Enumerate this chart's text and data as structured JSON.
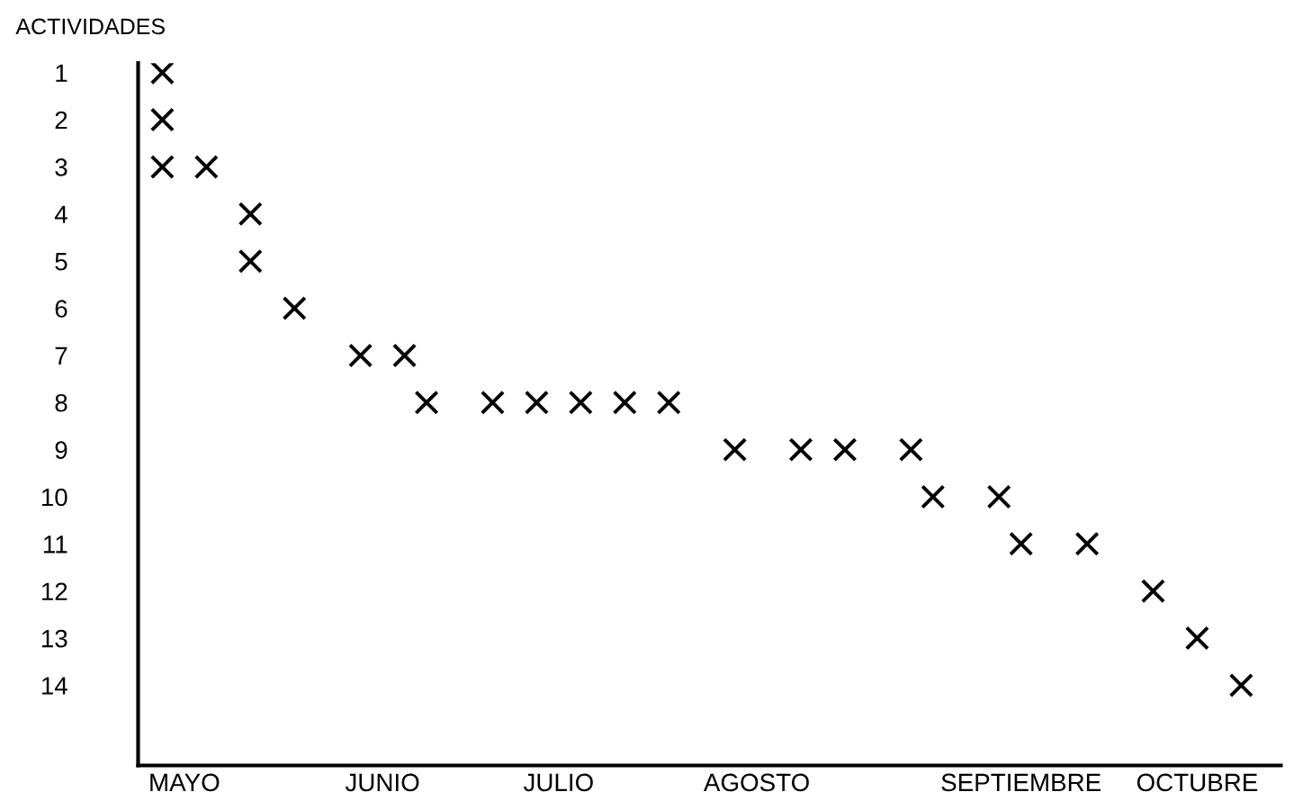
{
  "chart_data": {
    "type": "scatter",
    "ylabel": "ACTIVIDADES",
    "categories": [
      null,
      "MAYO",
      null,
      null,
      null,
      null,
      null,
      null,
      null,
      null,
      "JUNIO",
      null,
      null,
      null,
      null,
      null,
      null,
      null,
      "JULIO",
      null,
      null,
      null,
      null,
      null,
      null,
      null,
      null,
      "AGOSTO",
      null,
      null,
      null,
      null,
      null,
      null,
      null,
      null,
      null,
      null,
      null,
      "SEPTIEMBRE",
      null,
      null,
      null,
      null,
      null,
      null,
      null,
      "OCTUBRE",
      null,
      null,
      null
    ],
    "series": [
      {
        "color": "#000000",
        "values": [
          1,
          null,
          null,
          null,
          null,
          null,
          null,
          null,
          null,
          null,
          null,
          null,
          null,
          null,
          null,
          null,
          null,
          null,
          null,
          null,
          null,
          null,
          null,
          null,
          null,
          null,
          null,
          null,
          null,
          null,
          null,
          null,
          null,
          null,
          null,
          null,
          null,
          null,
          null,
          null,
          null,
          null,
          null,
          null,
          null,
          null,
          null,
          null,
          null,
          null,
          null
        ]
      },
      {
        "color": "#000000",
        "values": [
          2,
          null,
          null,
          null,
          null,
          null,
          null,
          null,
          null,
          null,
          null,
          null,
          null,
          null,
          null,
          null,
          null,
          null,
          null,
          null,
          null,
          null,
          null,
          null,
          null,
          null,
          null,
          null,
          null,
          null,
          null,
          null,
          null,
          null,
          null,
          null,
          null,
          null,
          null,
          null,
          null,
          null,
          null,
          null,
          null,
          null,
          null,
          null,
          null,
          null,
          null
        ]
      },
      {
        "color": "#000000",
        "values": [
          3,
          null,
          3,
          null,
          null,
          null,
          null,
          null,
          null,
          null,
          null,
          null,
          null,
          null,
          null,
          null,
          null,
          null,
          null,
          null,
          null,
          null,
          null,
          null,
          null,
          null,
          null,
          null,
          null,
          null,
          null,
          null,
          null,
          null,
          null,
          null,
          null,
          null,
          null,
          null,
          null,
          null,
          null,
          null,
          null,
          null,
          null,
          null,
          null,
          null,
          null
        ]
      },
      {
        "color": "#000000",
        "values": [
          null,
          null,
          null,
          null,
          4,
          null,
          null,
          null,
          null,
          null,
          null,
          null,
          null,
          null,
          null,
          null,
          null,
          null,
          null,
          null,
          null,
          null,
          null,
          null,
          null,
          null,
          null,
          null,
          null,
          null,
          null,
          null,
          null,
          null,
          null,
          null,
          null,
          null,
          null,
          null,
          null,
          null,
          null,
          null,
          null,
          null,
          null,
          null,
          null,
          null,
          null
        ]
      },
      {
        "color": "#000000",
        "values": [
          null,
          null,
          null,
          null,
          5,
          null,
          null,
          null,
          null,
          null,
          null,
          null,
          null,
          null,
          null,
          null,
          null,
          null,
          null,
          null,
          null,
          null,
          null,
          null,
          null,
          null,
          null,
          null,
          null,
          null,
          null,
          null,
          null,
          null,
          null,
          null,
          null,
          null,
          null,
          null,
          null,
          null,
          null,
          null,
          null,
          null,
          null,
          null,
          null,
          null,
          null
        ]
      },
      {
        "color": "#000000",
        "values": [
          null,
          null,
          null,
          null,
          null,
          null,
          6,
          null,
          null,
          null,
          null,
          null,
          null,
          null,
          null,
          null,
          null,
          null,
          null,
          null,
          null,
          null,
          null,
          null,
          null,
          null,
          null,
          null,
          null,
          null,
          null,
          null,
          null,
          null,
          null,
          null,
          null,
          null,
          null,
          null,
          null,
          null,
          null,
          null,
          null,
          null,
          null,
          null,
          null,
          null,
          null
        ]
      },
      {
        "color": "#000000",
        "values": [
          null,
          null,
          null,
          null,
          null,
          null,
          null,
          null,
          null,
          7,
          null,
          7,
          null,
          null,
          null,
          null,
          null,
          null,
          null,
          null,
          null,
          null,
          null,
          null,
          null,
          null,
          null,
          null,
          null,
          null,
          null,
          null,
          null,
          null,
          null,
          null,
          null,
          null,
          null,
          null,
          null,
          null,
          null,
          null,
          null,
          null,
          null,
          null,
          null,
          null,
          null
        ]
      },
      {
        "color": "#000000",
        "values": [
          null,
          null,
          null,
          null,
          null,
          null,
          null,
          null,
          null,
          null,
          null,
          null,
          8,
          null,
          null,
          8,
          null,
          8,
          null,
          8,
          null,
          8,
          null,
          8,
          null,
          null,
          null,
          null,
          null,
          null,
          null,
          null,
          null,
          null,
          null,
          null,
          null,
          null,
          null,
          null,
          null,
          null,
          null,
          null,
          null,
          null,
          null,
          null,
          null,
          null,
          null
        ]
      },
      {
        "color": "#000000",
        "values": [
          null,
          null,
          null,
          null,
          null,
          null,
          null,
          null,
          null,
          null,
          null,
          null,
          null,
          null,
          null,
          null,
          null,
          null,
          null,
          null,
          null,
          null,
          null,
          null,
          null,
          null,
          9,
          null,
          null,
          9,
          null,
          9,
          null,
          null,
          9,
          null,
          null,
          null,
          null,
          null,
          null,
          null,
          null,
          null,
          null,
          null,
          null,
          null,
          null,
          null,
          null
        ]
      },
      {
        "color": "#000000",
        "values": [
          null,
          null,
          null,
          null,
          null,
          null,
          null,
          null,
          null,
          null,
          null,
          null,
          null,
          null,
          null,
          null,
          null,
          null,
          null,
          null,
          null,
          null,
          null,
          null,
          null,
          null,
          null,
          null,
          null,
          null,
          null,
          null,
          null,
          null,
          null,
          10,
          null,
          null,
          10,
          null,
          null,
          null,
          null,
          null,
          null,
          null,
          null,
          null,
          null,
          null,
          null
        ]
      },
      {
        "color": "#000000",
        "values": [
          null,
          null,
          null,
          null,
          null,
          null,
          null,
          null,
          null,
          null,
          null,
          null,
          null,
          null,
          null,
          null,
          null,
          null,
          null,
          null,
          null,
          null,
          null,
          null,
          null,
          null,
          null,
          null,
          null,
          null,
          null,
          null,
          null,
          null,
          null,
          null,
          null,
          null,
          null,
          11,
          null,
          null,
          11,
          null,
          null,
          null,
          null,
          null,
          null,
          null,
          null
        ]
      },
      {
        "color": "#000000",
        "values": [
          null,
          null,
          null,
          null,
          null,
          null,
          null,
          null,
          null,
          null,
          null,
          null,
          null,
          null,
          null,
          null,
          null,
          null,
          null,
          null,
          null,
          null,
          null,
          null,
          null,
          null,
          null,
          null,
          null,
          null,
          null,
          null,
          null,
          null,
          null,
          null,
          null,
          null,
          null,
          null,
          null,
          null,
          null,
          null,
          null,
          12,
          null,
          null,
          null,
          null,
          null
        ]
      },
      {
        "color": "#000000",
        "values": [
          null,
          null,
          null,
          null,
          null,
          null,
          null,
          null,
          null,
          null,
          null,
          null,
          null,
          null,
          null,
          null,
          null,
          null,
          null,
          null,
          null,
          null,
          null,
          null,
          null,
          null,
          null,
          null,
          null,
          null,
          null,
          null,
          null,
          null,
          null,
          null,
          null,
          null,
          null,
          null,
          null,
          null,
          null,
          null,
          null,
          null,
          null,
          13,
          null,
          null,
          null
        ]
      },
      {
        "color": "#000000",
        "values": [
          null,
          null,
          null,
          null,
          null,
          null,
          null,
          null,
          null,
          null,
          null,
          null,
          null,
          null,
          null,
          null,
          null,
          null,
          null,
          null,
          null,
          null,
          null,
          null,
          null,
          null,
          null,
          null,
          null,
          null,
          null,
          null,
          null,
          null,
          null,
          null,
          null,
          null,
          null,
          null,
          null,
          null,
          null,
          null,
          null,
          null,
          null,
          null,
          null,
          14,
          null
        ]
      }
    ],
    "ylim": [
      15.7,
      0.8
    ],
    "yticks": [
      1,
      2,
      3,
      4,
      5,
      6,
      7,
      8,
      9,
      10,
      11,
      12,
      13,
      14
    ],
    "marker": "cross",
    "grid": false,
    "legend": false
  }
}
